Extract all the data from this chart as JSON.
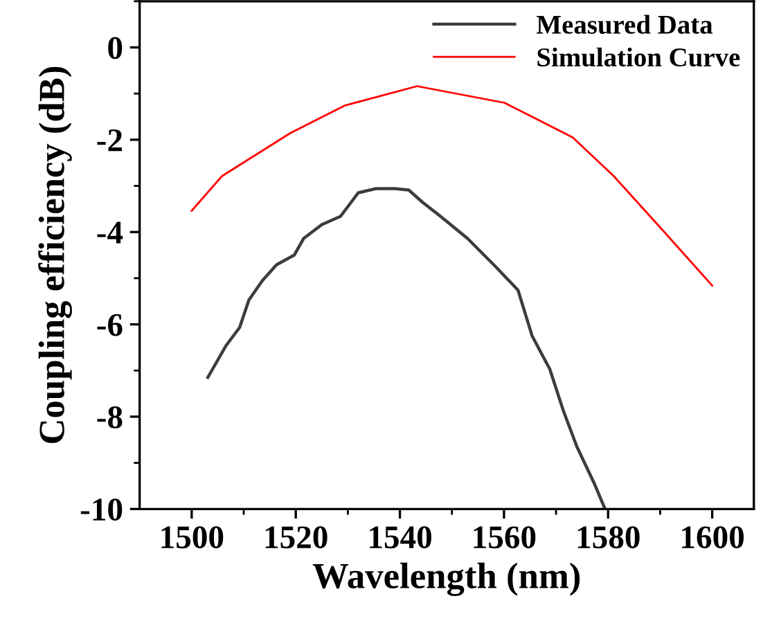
{
  "chart_data": {
    "type": "line",
    "xlabel": "Wavelength (nm)",
    "ylabel": "Coupling efficiency (dB)",
    "xlim": [
      1490,
      1608
    ],
    "ylim": [
      -10,
      1
    ],
    "xticks": [
      1500,
      1520,
      1540,
      1560,
      1580,
      1600
    ],
    "yticks": [
      -10,
      -8,
      -6,
      -4,
      -2,
      0
    ],
    "grid": false,
    "legend": "top right",
    "line_style": "solid",
    "marker": "none",
    "series": [
      {
        "name": "Measured Data",
        "color": "#3c3c3c",
        "x": [
          1503.1,
          1506.6,
          1509.2,
          1511,
          1513.6,
          1516.3,
          1519.7,
          1521.5,
          1525,
          1528.6,
          1532,
          1535.4,
          1539,
          1541.7,
          1544.4,
          1547.8,
          1550.4,
          1553,
          1558.3,
          1562.7,
          1565.4,
          1568.8,
          1571.4,
          1574,
          1577.4,
          1579.3
        ],
        "values": [
          -7.15,
          -6.46,
          -6.07,
          -5.47,
          -5.05,
          -4.71,
          -4.5,
          -4.14,
          -3.84,
          -3.66,
          -3.15,
          -3.06,
          -3.06,
          -3.09,
          -3.36,
          -3.66,
          -3.9,
          -4.14,
          -4.74,
          -5.26,
          -6.25,
          -6.97,
          -7.87,
          -8.65,
          -9.46,
          -9.97
        ]
      },
      {
        "name": "Simulation Curve",
        "color": "#ff0000",
        "x": [
          1500,
          1505.8,
          1518.9,
          1529.4,
          1543.3,
          1560.1,
          1573.2,
          1581.1,
          1590,
          1600
        ],
        "values": [
          -3.54,
          -2.79,
          -1.86,
          -1.26,
          -0.84,
          -1.2,
          -1.95,
          -2.79,
          -3.9,
          -5.16
        ]
      }
    ]
  }
}
